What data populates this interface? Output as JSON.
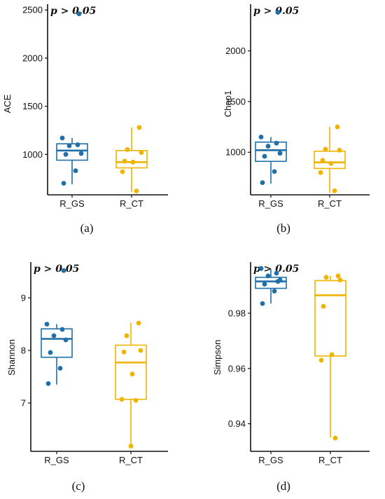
{
  "colors": {
    "R_GS": "#1f6fa8",
    "R_CT": "#f0b400",
    "axis": "#111111"
  },
  "chart_data": [
    {
      "type": "box",
      "panel_label": "(a)",
      "ylabel": "ACE",
      "annotation": "p > 0.05",
      "categories": [
        "R_GS",
        "R_CT"
      ],
      "ylim": [
        580,
        2560
      ],
      "yticks": [
        1000,
        1500,
        2000,
        2500
      ],
      "tick_labels": [
        "1000",
        "1500",
        "2000",
        "2500"
      ],
      "series": [
        {
          "name": "R_GS",
          "box": {
            "whisker_low": 690,
            "q1": 940,
            "median": 1040,
            "q3": 1110,
            "whisker_high": 1170
          },
          "points": [
            1170,
            1100,
            1090,
            1010,
            1000,
            830,
            700,
            2460
          ]
        },
        {
          "name": "R_CT",
          "box": {
            "whisker_low": 610,
            "q1": 860,
            "median": 920,
            "q3": 1040,
            "whisker_high": 1280
          },
          "points": [
            1280,
            1050,
            1020,
            930,
            920,
            820,
            620
          ]
        }
      ]
    },
    {
      "type": "box",
      "panel_label": "(b)",
      "ylabel": "Chao1",
      "annotation": "p > 0.05",
      "categories": [
        "R_GS",
        "R_CT"
      ],
      "ylim": [
        580,
        2460
      ],
      "yticks": [
        1000,
        1500,
        2000
      ],
      "tick_labels": [
        "1000",
        "1500",
        "2000"
      ],
      "series": [
        {
          "name": "R_GS",
          "box": {
            "whisker_low": 690,
            "q1": 910,
            "median": 1020,
            "q3": 1100,
            "whisker_high": 1150
          },
          "points": [
            1150,
            1090,
            1060,
            990,
            960,
            810,
            700,
            2380
          ]
        },
        {
          "name": "R_CT",
          "box": {
            "whisker_low": 600,
            "q1": 840,
            "median": 900,
            "q3": 1010,
            "whisker_high": 1250
          },
          "points": [
            1250,
            1030,
            1020,
            920,
            890,
            800,
            620
          ]
        }
      ]
    },
    {
      "type": "box",
      "panel_label": "(c)",
      "ylabel": "Shannon",
      "annotation": "p > 0.05",
      "categories": [
        "R_GS",
        "R_CT"
      ],
      "ylim": [
        6.08,
        9.68
      ],
      "yticks": [
        7,
        8,
        9
      ],
      "tick_labels": [
        "7",
        "8",
        "9"
      ],
      "series": [
        {
          "name": "R_GS",
          "box": {
            "whisker_low": 7.35,
            "q1": 7.87,
            "median": 8.22,
            "q3": 8.41,
            "whisker_high": 8.5
          },
          "points": [
            8.5,
            8.4,
            8.28,
            8.2,
            7.96,
            7.66,
            7.37,
            9.52
          ]
        },
        {
          "name": "R_CT",
          "box": {
            "whisker_low": 6.18,
            "q1": 7.07,
            "median": 7.77,
            "q3": 8.1,
            "whisker_high": 8.53
          },
          "points": [
            8.52,
            8.28,
            8.0,
            7.97,
            7.55,
            7.07,
            7.05,
            6.18
          ]
        }
      ]
    },
    {
      "type": "box",
      "panel_label": "(d)",
      "ylabel": "Simpson",
      "annotation": "p > 0.05",
      "categories": [
        "R_GS",
        "R_CT"
      ],
      "ylim": [
        0.93,
        0.9985
      ],
      "yticks": [
        0.94,
        0.96,
        0.98
      ],
      "tick_labels": [
        "0.94",
        "0.96",
        "0.98"
      ],
      "series": [
        {
          "name": "R_GS",
          "box": {
            "whisker_low": 0.9835,
            "q1": 0.989,
            "median": 0.9915,
            "q3": 0.993,
            "whisker_high": 0.996
          },
          "points": [
            0.9962,
            0.9945,
            0.9935,
            0.992,
            0.9905,
            0.988,
            0.9835,
            0.9915
          ]
        },
        {
          "name": "R_CT",
          "box": {
            "whisker_low": 0.935,
            "q1": 0.9645,
            "median": 0.9865,
            "q3": 0.9918,
            "whisker_high": 0.9935
          },
          "points": [
            0.9935,
            0.993,
            0.992,
            0.9825,
            0.965,
            0.963,
            0.9348
          ]
        }
      ]
    }
  ]
}
